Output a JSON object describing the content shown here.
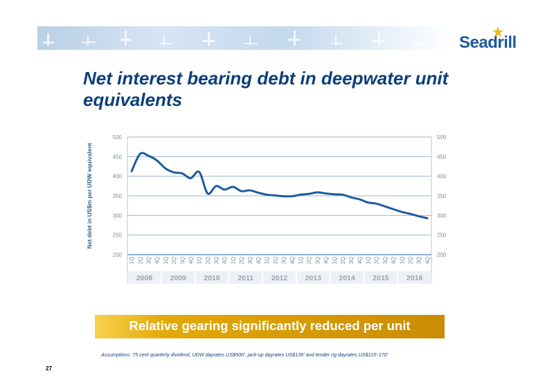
{
  "header": {
    "logo_text": "Seadrill",
    "banner": "offshore-rig-silhouette-banner"
  },
  "title": "Net interest bearing debt in deepwater unit equivalents",
  "callout": "Relative gearing significantly reduced per unit",
  "footnote": "Assumptions: 75 cent quarterly dividend, UDW dayrates US$500', jack-up dayrates US$135' and tender rig dayrates US$115'-170'",
  "page_number": "27",
  "colors": {
    "title": "#0c3f79",
    "line": "#1c5b9c",
    "gold": "#d79c06",
    "logo": "#1c5b9c"
  },
  "chart_data": {
    "type": "line",
    "ylabel": "Net debt in US$m per UDW equivalent",
    "ylim": [
      200,
      500
    ],
    "yticks": [
      200,
      250,
      300,
      350,
      400,
      450,
      500
    ],
    "secondary_y_axis": true,
    "grid": "horizontal",
    "years": [
      "2008",
      "2009",
      "2010",
      "2011",
      "2012",
      "2013",
      "2014",
      "2015",
      "2016"
    ],
    "quarters": [
      "1Q",
      "2Q",
      "3Q",
      "4Q"
    ],
    "x": [
      "2008 1Q",
      "2008 2Q",
      "2008 3Q",
      "2008 4Q",
      "2009 1Q",
      "2009 2Q",
      "2009 3Q",
      "2009 4Q",
      "2010 1Q",
      "2010 2Q",
      "2010 3Q",
      "2010 4Q",
      "2011 1Q",
      "2011 2Q",
      "2011 3Q",
      "2011 4Q",
      "2012 1Q",
      "2012 2Q",
      "2012 3Q",
      "2012 4Q",
      "2013 1Q",
      "2013 2Q",
      "2013 3Q",
      "2013 4Q",
      "2014 1Q",
      "2014 2Q",
      "2014 3Q",
      "2014 4Q",
      "2015 1Q",
      "2015 2Q",
      "2015 3Q",
      "2015 4Q",
      "2016 1Q",
      "2016 2Q",
      "2016 3Q",
      "2016 4Q"
    ],
    "values": [
      413,
      457,
      452,
      440,
      420,
      410,
      407,
      395,
      411,
      356,
      375,
      366,
      373,
      362,
      364,
      358,
      353,
      351,
      349,
      349,
      353,
      355,
      359,
      356,
      354,
      353,
      346,
      341,
      333,
      330,
      323,
      316,
      309,
      304,
      298,
      293
    ]
  }
}
